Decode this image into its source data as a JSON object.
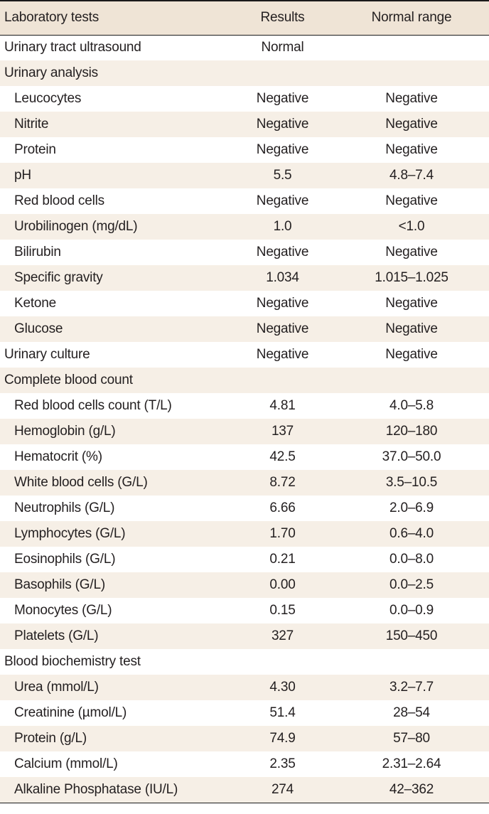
{
  "headers": {
    "test": "Laboratory tests",
    "result": "Results",
    "range": "Normal range"
  },
  "rows": [
    {
      "test": "Urinary tract ultrasound",
      "result": "Normal",
      "range": "",
      "level": 0
    },
    {
      "test": "Urinary analysis",
      "result": "",
      "range": "",
      "level": 0
    },
    {
      "test": "Leucocytes",
      "result": "Negative",
      "range": "Negative",
      "level": 1
    },
    {
      "test": "Nitrite",
      "result": "Negative",
      "range": "Negative",
      "level": 1
    },
    {
      "test": "Protein",
      "result": "Negative",
      "range": "Negative",
      "level": 1
    },
    {
      "test": "pH",
      "result": "5.5",
      "range": "4.8–7.4",
      "level": 1
    },
    {
      "test": "Red blood cells",
      "result": "Negative",
      "range": "Negative",
      "level": 1
    },
    {
      "test": "Urobilinogen (mg/dL)",
      "result": "1.0",
      "range": "<1.0",
      "level": 1
    },
    {
      "test": "Bilirubin",
      "result": "Negative",
      "range": "Negative",
      "level": 1
    },
    {
      "test": "Specific gravity",
      "result": "1.034",
      "range": "1.015–1.025",
      "level": 1
    },
    {
      "test": "Ketone",
      "result": "Negative",
      "range": "Negative",
      "level": 1
    },
    {
      "test": "Glucose",
      "result": "Negative",
      "range": "Negative",
      "level": 1
    },
    {
      "test": "Urinary culture",
      "result": "Negative",
      "range": "Negative",
      "level": 0
    },
    {
      "test": "Complete blood count",
      "result": "",
      "range": "",
      "level": 0
    },
    {
      "test": "Red blood cells count (T/L)",
      "result": "4.81",
      "range": "4.0–5.8",
      "level": 1
    },
    {
      "test": "Hemoglobin (g/L)",
      "result": "137",
      "range": "120–180",
      "level": 1
    },
    {
      "test": "Hematocrit (%)",
      "result": "42.5",
      "range": "37.0–50.0",
      "level": 1
    },
    {
      "test": "White blood cells (G/L)",
      "result": "8.72",
      "range": "3.5–10.5",
      "level": 1
    },
    {
      "test": "Neutrophils (G/L)",
      "result": "6.66",
      "range": "2.0–6.9",
      "level": 1
    },
    {
      "test": "Lymphocytes (G/L)",
      "result": "1.70",
      "range": "0.6–4.0",
      "level": 1
    },
    {
      "test": "Eosinophils (G/L)",
      "result": "0.21",
      "range": "0.0–8.0",
      "level": 1
    },
    {
      "test": "Basophils (G/L)",
      "result": "0.00",
      "range": "0.0–2.5",
      "level": 1
    },
    {
      "test": "Monocytes (G/L)",
      "result": "0.15",
      "range": "0.0–0.9",
      "level": 1
    },
    {
      "test": "Platelets (G/L)",
      "result": "327",
      "range": "150–450",
      "level": 1
    },
    {
      "test": "Blood biochemistry test",
      "result": "",
      "range": "",
      "level": 0
    },
    {
      "test": "Urea (mmol/L)",
      "result": "4.30",
      "range": "3.2–7.7",
      "level": 1
    },
    {
      "test": "Creatinine (µmol/L)",
      "result": "51.4",
      "range": "28–54",
      "level": 1
    },
    {
      "test": "Protein (g/L)",
      "result": "74.9",
      "range": "57–80",
      "level": 1
    },
    {
      "test": "Calcium (mmol/L)",
      "result": "2.35",
      "range": "2.31–2.64",
      "level": 1
    },
    {
      "test": "Alkaline Phosphatase (IU/L)",
      "result": "274",
      "range": "42–362",
      "level": 1
    }
  ],
  "colors": {
    "header_bg": "#efe4d6",
    "stripe_bg": "#f6efe6",
    "text": "#231f20",
    "rule": "#1a1a1a"
  }
}
